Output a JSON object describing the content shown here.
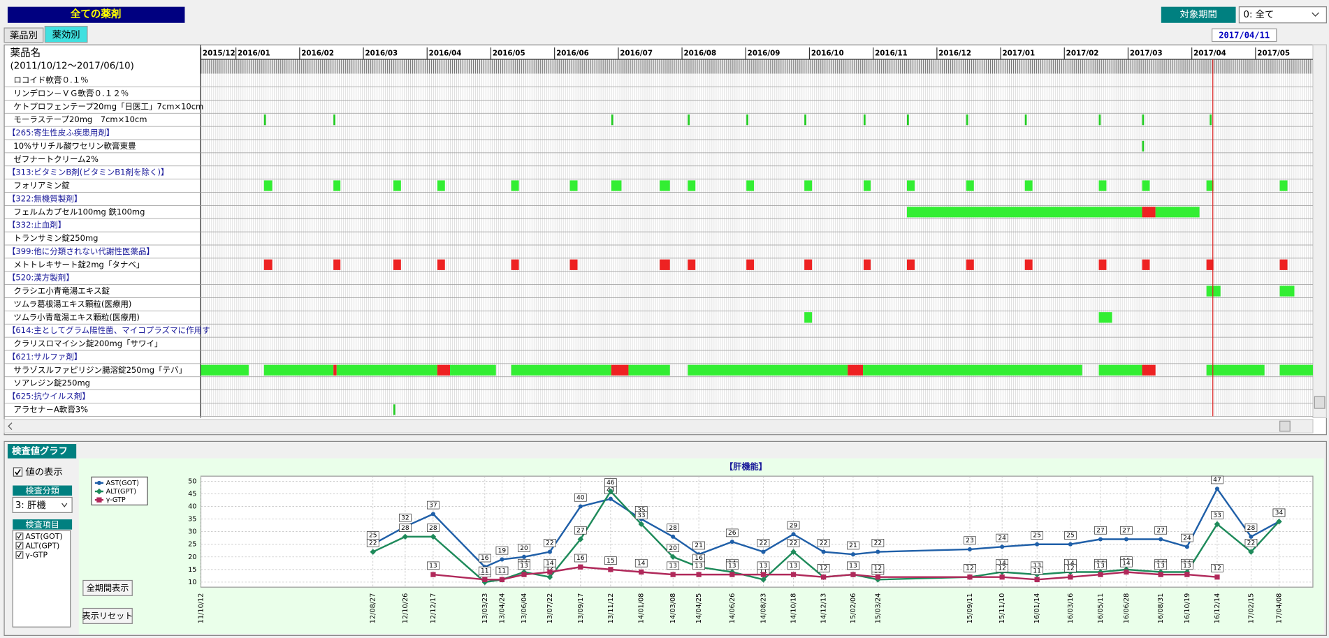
{
  "header": {
    "title": "全ての薬剤",
    "period_label": "対象期間",
    "period_select": "0: 全て",
    "tabs": [
      "薬品別",
      "薬効別"
    ],
    "date": "2017/04/11"
  },
  "drug_grid": {
    "column_title": "薬品名",
    "range": "(2011/10/12～2017/06/10)",
    "xlim": [
      0.45,
      17.9
    ],
    "xticks": [
      {
        "value": 0.45,
        "label": "2015/12"
      },
      {
        "value": 1,
        "label": "2016/01"
      },
      {
        "value": 2,
        "label": "2016/02"
      },
      {
        "value": 3,
        "label": "2016/03"
      },
      {
        "value": 4,
        "label": "2016/04"
      },
      {
        "value": 5,
        "label": "2016/05"
      },
      {
        "value": 6,
        "label": "2016/06"
      },
      {
        "value": 7,
        "label": "2016/07"
      },
      {
        "value": 8,
        "label": "2016/08"
      },
      {
        "value": 9,
        "label": "2016/09"
      },
      {
        "value": 10,
        "label": "2016/10"
      },
      {
        "value": 11,
        "label": "2016/11"
      },
      {
        "value": 12,
        "label": "2016/12"
      },
      {
        "value": 13,
        "label": "2017/01"
      },
      {
        "value": 14,
        "label": "2017/02"
      },
      {
        "value": 15,
        "label": "2017/03"
      },
      {
        "value": 16,
        "label": "2017/04"
      },
      {
        "value": 17,
        "label": "2017/05"
      }
    ],
    "today": 16.33,
    "today_color": "#e02020",
    "rows": [
      {
        "label": "ロコイド軟膏０.１％",
        "category": false,
        "bars": []
      },
      {
        "label": "リンデロン－ＶＧ軟膏０.１２％",
        "category": false,
        "bars": []
      },
      {
        "label": "ケトプロフェンテープ20mg「日医工」7cm×10cm",
        "category": false,
        "bars": []
      },
      {
        "label": "モーラステープ20mg　7cm×10cm",
        "category": false,
        "bars": [
          {
            "start": 1.44,
            "end": 1.47,
            "color": "#22cc22"
          },
          {
            "start": 2.53,
            "end": 2.56,
            "color": "#22cc22"
          },
          {
            "start": 6.89,
            "end": 6.92,
            "color": "#22cc22"
          },
          {
            "start": 8.09,
            "end": 8.12,
            "color": "#22cc22"
          },
          {
            "start": 9.01,
            "end": 9.04,
            "color": "#22cc22"
          },
          {
            "start": 9.92,
            "end": 9.95,
            "color": "#22cc22"
          },
          {
            "start": 10.85,
            "end": 10.88,
            "color": "#22cc22"
          },
          {
            "start": 11.53,
            "end": 11.56,
            "color": "#22cc22"
          },
          {
            "start": 12.46,
            "end": 12.49,
            "color": "#22cc22"
          },
          {
            "start": 13.38,
            "end": 13.41,
            "color": "#22cc22"
          },
          {
            "start": 14.54,
            "end": 14.57,
            "color": "#22cc22"
          },
          {
            "start": 15.22,
            "end": 15.25,
            "color": "#22cc22"
          },
          {
            "start": 16.28,
            "end": 16.31,
            "color": "#22cc22"
          }
        ]
      },
      {
        "label": "【265:寄生性皮ふ疾患用剤】",
        "category": true,
        "bars": []
      },
      {
        "label": "10%サリチル酸ワセリン軟膏東豊",
        "category": false,
        "bars": [
          {
            "start": 15.22,
            "end": 15.25,
            "color": "#22cc22"
          }
        ]
      },
      {
        "label": "ゼフナートクリーム2%",
        "category": false,
        "bars": []
      },
      {
        "label": "【313:ビタミンB剤(ビタミンB1剤を除く)】",
        "category": true,
        "bars": []
      },
      {
        "label": "フォリアミン錠",
        "category": false,
        "bars": [
          {
            "start": 1.44,
            "end": 1.57,
            "color": "#33ee33"
          },
          {
            "start": 2.53,
            "end": 2.64,
            "color": "#33ee33"
          },
          {
            "start": 3.47,
            "end": 3.59,
            "color": "#33ee33"
          },
          {
            "start": 4.16,
            "end": 4.28,
            "color": "#33ee33"
          },
          {
            "start": 5.32,
            "end": 5.44,
            "color": "#33ee33"
          },
          {
            "start": 6.24,
            "end": 6.36,
            "color": "#33ee33"
          },
          {
            "start": 6.89,
            "end": 7.05,
            "color": "#33ee33"
          },
          {
            "start": 7.65,
            "end": 7.81,
            "color": "#33ee33"
          },
          {
            "start": 8.09,
            "end": 8.21,
            "color": "#33ee33"
          },
          {
            "start": 9.01,
            "end": 9.13,
            "color": "#33ee33"
          },
          {
            "start": 9.92,
            "end": 10.04,
            "color": "#33ee33"
          },
          {
            "start": 10.85,
            "end": 10.96,
            "color": "#33ee33"
          },
          {
            "start": 11.53,
            "end": 11.65,
            "color": "#33ee33"
          },
          {
            "start": 12.46,
            "end": 12.58,
            "color": "#33ee33"
          },
          {
            "start": 13.38,
            "end": 13.5,
            "color": "#33ee33"
          },
          {
            "start": 14.54,
            "end": 14.66,
            "color": "#33ee33"
          },
          {
            "start": 15.22,
            "end": 15.34,
            "color": "#33ee33"
          },
          {
            "start": 16.23,
            "end": 16.34,
            "color": "#33ee33"
          },
          {
            "start": 17.38,
            "end": 17.5,
            "color": "#33ee33"
          }
        ]
      },
      {
        "label": "【322:無機質製剤】",
        "category": true,
        "bars": []
      },
      {
        "label": "フェルムカプセル100mg  鉄100mg",
        "category": false,
        "bars": [
          {
            "start": 11.53,
            "end": 15.22,
            "color": "#33ee33"
          },
          {
            "start": 15.22,
            "end": 15.43,
            "color": "#ee2222"
          },
          {
            "start": 15.43,
            "end": 16.12,
            "color": "#33ee33"
          }
        ]
      },
      {
        "label": "【332:止血剤】",
        "category": true,
        "bars": []
      },
      {
        "label": "トランサミン錠250mg",
        "category": false,
        "bars": []
      },
      {
        "label": "【399:他に分類されない代謝性医薬品】",
        "category": true,
        "bars": []
      },
      {
        "label": "メトトレキサート錠2mg「タナベ」",
        "category": false,
        "bars": [
          {
            "start": 1.44,
            "end": 1.57,
            "color": "#ee2222"
          },
          {
            "start": 2.53,
            "end": 2.64,
            "color": "#ee2222"
          },
          {
            "start": 3.47,
            "end": 3.59,
            "color": "#ee2222"
          },
          {
            "start": 4.16,
            "end": 4.28,
            "color": "#ee2222"
          },
          {
            "start": 5.32,
            "end": 5.44,
            "color": "#ee2222"
          },
          {
            "start": 6.24,
            "end": 6.36,
            "color": "#ee2222"
          },
          {
            "start": 7.65,
            "end": 7.81,
            "color": "#ee2222"
          },
          {
            "start": 8.09,
            "end": 8.21,
            "color": "#ee2222"
          },
          {
            "start": 9.01,
            "end": 9.13,
            "color": "#ee2222"
          },
          {
            "start": 9.92,
            "end": 10.04,
            "color": "#ee2222"
          },
          {
            "start": 10.85,
            "end": 10.96,
            "color": "#ee2222"
          },
          {
            "start": 11.53,
            "end": 11.65,
            "color": "#ee2222"
          },
          {
            "start": 12.46,
            "end": 12.58,
            "color": "#ee2222"
          },
          {
            "start": 13.38,
            "end": 13.5,
            "color": "#ee2222"
          },
          {
            "start": 14.54,
            "end": 14.66,
            "color": "#ee2222"
          },
          {
            "start": 15.22,
            "end": 15.34,
            "color": "#ee2222"
          },
          {
            "start": 16.23,
            "end": 16.34,
            "color": "#ee2222"
          },
          {
            "start": 17.38,
            "end": 17.5,
            "color": "#ee2222"
          }
        ]
      },
      {
        "label": "【520:漢方製剤】",
        "category": true,
        "bars": []
      },
      {
        "label": "クラシエ小青竜湯エキス錠",
        "category": false,
        "bars": [
          {
            "start": 16.23,
            "end": 16.45,
            "color": "#33ee33"
          },
          {
            "start": 17.38,
            "end": 17.61,
            "color": "#33ee33"
          }
        ]
      },
      {
        "label": "ツムラ葛根湯エキス顆粒(医療用)",
        "category": false,
        "bars": []
      },
      {
        "label": "ツムラ小青竜湯エキス顆粒(医療用)",
        "category": false,
        "bars": [
          {
            "start": 9.92,
            "end": 10.04,
            "color": "#33ee33"
          },
          {
            "start": 14.54,
            "end": 14.75,
            "color": "#33ee33"
          }
        ]
      },
      {
        "label": "【614:主としてグラム陽性菌、マイコプラズマに作用す",
        "category": true,
        "bars": []
      },
      {
        "label": "クラリスロマイシン錠200mg「サワイ」",
        "category": false,
        "bars": []
      },
      {
        "label": "【621:サルファ剤】",
        "category": true,
        "bars": []
      },
      {
        "label": "サラゾスルファピリジン腸溶錠250mg「テバ」",
        "category": false,
        "bars": [
          {
            "start": 0.45,
            "end": 1.2,
            "color": "#33ee33"
          },
          {
            "start": 1.44,
            "end": 2.53,
            "color": "#33ee33"
          },
          {
            "start": 2.53,
            "end": 2.58,
            "color": "#ee2222"
          },
          {
            "start": 2.58,
            "end": 4.16,
            "color": "#33ee33"
          },
          {
            "start": 4.16,
            "end": 4.36,
            "color": "#ee2222"
          },
          {
            "start": 4.36,
            "end": 5.08,
            "color": "#33ee33"
          },
          {
            "start": 5.32,
            "end": 6.89,
            "color": "#33ee33"
          },
          {
            "start": 6.89,
            "end": 7.16,
            "color": "#ee2222"
          },
          {
            "start": 7.16,
            "end": 7.81,
            "color": "#33ee33"
          },
          {
            "start": 8.09,
            "end": 10.6,
            "color": "#33ee33"
          },
          {
            "start": 10.6,
            "end": 10.84,
            "color": "#ee2222"
          },
          {
            "start": 10.84,
            "end": 14.28,
            "color": "#33ee33"
          },
          {
            "start": 14.54,
            "end": 15.22,
            "color": "#33ee33"
          },
          {
            "start": 15.22,
            "end": 15.43,
            "color": "#ee2222"
          },
          {
            "start": 16.23,
            "end": 17.14,
            "color": "#33ee33"
          },
          {
            "start": 17.38,
            "end": 17.9,
            "color": "#33ee33"
          }
        ]
      },
      {
        "label": "ソアレジン錠250mg",
        "category": false,
        "bars": []
      },
      {
        "label": "【625:抗ウイルス剤】",
        "category": true,
        "bars": []
      },
      {
        "label": "アラセナ－A軟膏3%",
        "category": false,
        "bars": [
          {
            "start": 3.47,
            "end": 3.5,
            "color": "#22cc22"
          }
        ]
      }
    ]
  },
  "test_panel": {
    "title": "検査値グラフ",
    "show_values": "値の表示",
    "category_label": "検査分類",
    "category_select": "3: 肝機",
    "items_label": "検査項目",
    "items": [
      "AST(GOT)",
      "ALT(GPT)",
      "γ-GTP"
    ],
    "buttons": [
      "全期間表示",
      "表示リセット"
    ]
  },
  "chart_data": {
    "type": "line",
    "title": "【肝機能】",
    "x": [
      "12/08/27",
      "12/10/26",
      "12/12/17",
      "13/03/23",
      "13/04/24",
      "13/06/04",
      "13/07/22",
      "13/09/17",
      "13/11/12",
      "14/01/08",
      "14/03/08",
      "14/04/25",
      "14/06/26",
      "14/08/23",
      "14/10/18",
      "14/12/13",
      "15/02/06",
      "15/03/24",
      "15/09/11",
      "15/11/10",
      "16/01/14",
      "16/03/16",
      "16/05/11",
      "16/06/28",
      "16/08/31",
      "16/10/19",
      "16/12/14",
      "17/02/15",
      "17/04/08"
    ],
    "xlim": [
      "11/10/12",
      "17/06/10"
    ],
    "xticks": [
      "11/10/12",
      "12/08/27",
      "12/10/26",
      "12/12/17",
      "13/03/23",
      "13/04/24",
      "13/06/04",
      "13/07/22",
      "13/09/17",
      "13/11/12",
      "14/01/08",
      "14/03/08",
      "14/04/25",
      "14/06/26",
      "14/08/23",
      "14/10/18",
      "14/12/13",
      "15/02/06",
      "15/03/24",
      "15/09/11",
      "15/11/10",
      "16/01/14",
      "16/03/16",
      "16/05/11",
      "16/06/28",
      "16/08/31",
      "16/10/19",
      "16/12/14",
      "17/02/15",
      "17/04/08"
    ],
    "ylim": [
      8,
      52
    ],
    "yticks": [
      10,
      15,
      20,
      25,
      30,
      35,
      40,
      45,
      50
    ],
    "grid": true,
    "show_values": true,
    "series": [
      {
        "name": "AST(GOT)",
        "color": "#1f5fa8",
        "marker": "circle",
        "values": [
          25,
          32,
          37,
          16,
          19,
          20,
          22,
          40,
          43,
          35,
          28,
          21,
          26,
          22,
          29,
          22,
          21,
          22,
          23,
          24,
          25,
          25,
          27,
          27,
          27,
          24,
          47,
          28,
          34
        ]
      },
      {
        "name": "ALT(GPT)",
        "color": "#1e8a5a",
        "marker": "diamond",
        "values": [
          22,
          28,
          28,
          10,
          11,
          14,
          12,
          27,
          46,
          33,
          20,
          16,
          14,
          11,
          22,
          12,
          13,
          11,
          12,
          14,
          13,
          14,
          14,
          15,
          14,
          14,
          33,
          22,
          34
        ]
      },
      {
        "name": "γ-GTP",
        "color": "#b0285a",
        "marker": "square",
        "values": [
          null,
          null,
          13,
          11,
          11,
          13,
          14,
          16,
          15,
          14,
          13,
          13,
          13,
          13,
          13,
          12,
          13,
          12,
          12,
          12,
          11,
          12,
          13,
          14,
          13,
          13,
          12,
          null,
          null
        ]
      }
    ]
  }
}
